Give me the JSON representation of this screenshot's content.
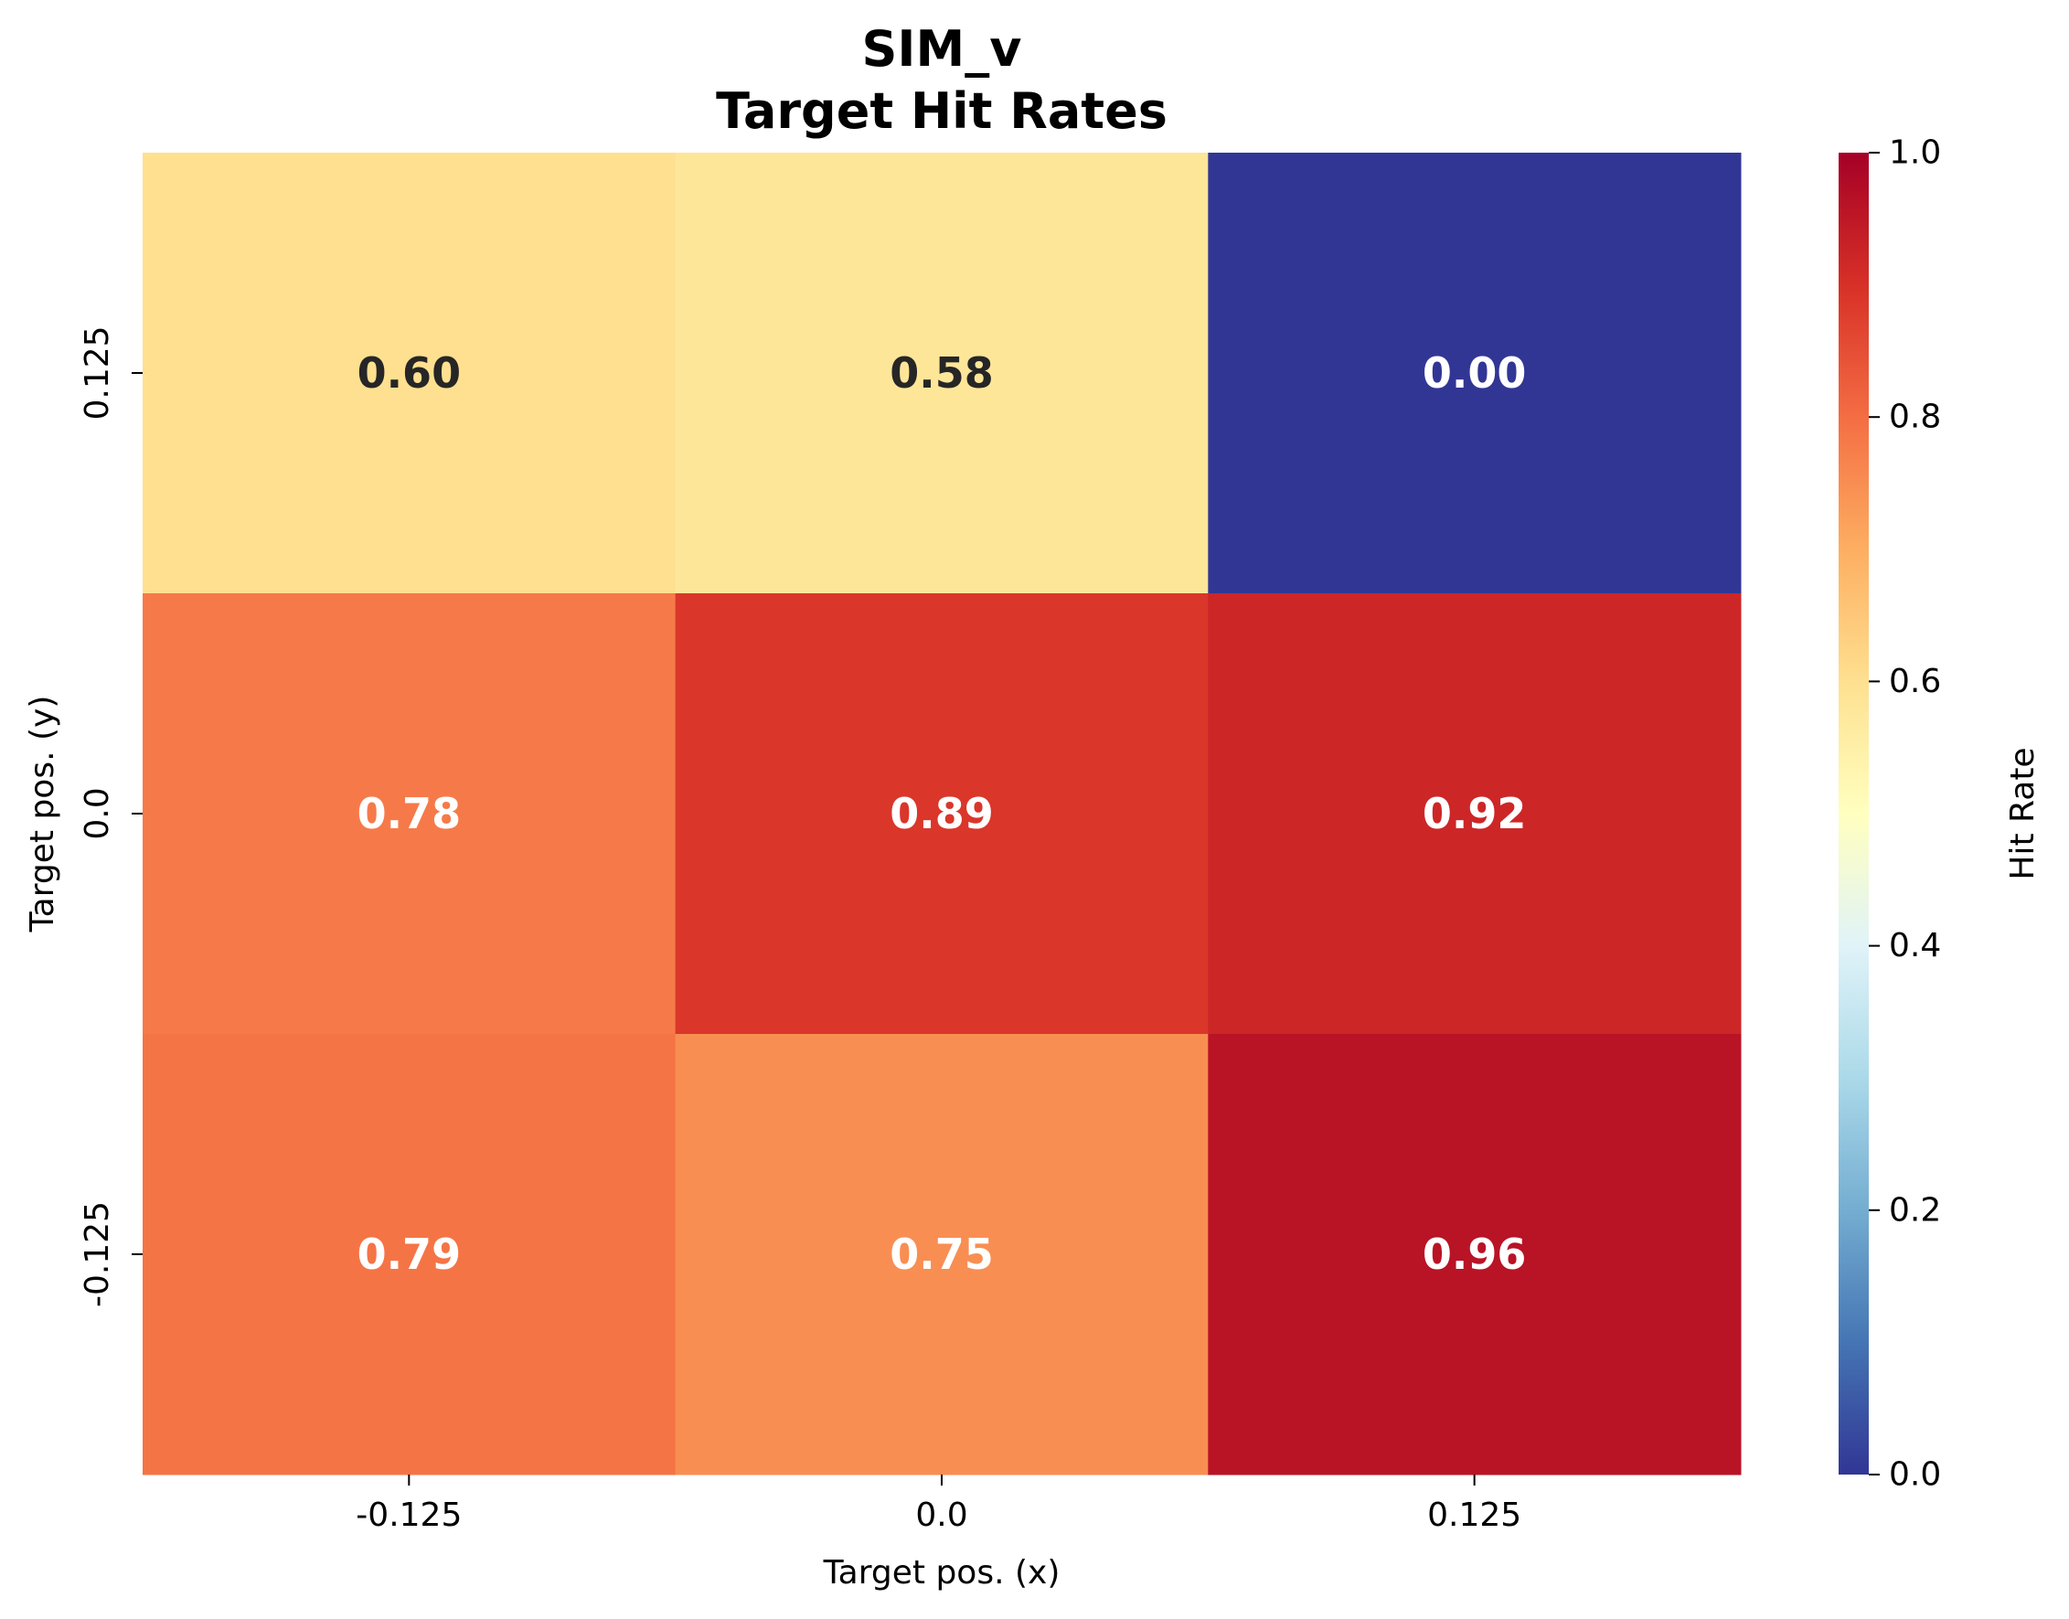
{
  "chart_data": {
    "type": "heatmap",
    "title": "SIM_v",
    "subtitle": "Target Hit Rates",
    "xlabel": "Target pos. (x)",
    "ylabel": "Target pos. (y)",
    "x_categories": [
      "-0.125",
      "0.0",
      "0.125"
    ],
    "y_categories": [
      "0.125",
      "0.0",
      "-0.125"
    ],
    "values": [
      [
        0.6,
        0.58,
        0.0
      ],
      [
        0.78,
        0.89,
        0.92
      ],
      [
        0.79,
        0.75,
        0.96
      ]
    ],
    "value_labels": [
      [
        "0.60",
        "0.58",
        "0.00"
      ],
      [
        "0.78",
        "0.89",
        "0.92"
      ],
      [
        "0.79",
        "0.75",
        "0.96"
      ]
    ],
    "colormap": "RdYlBu_r",
    "colorbar": {
      "label": "Hit Rate",
      "range": [
        0.0,
        1.0
      ],
      "ticks": [
        "0.0",
        "0.2",
        "0.4",
        "0.6",
        "0.8",
        "1.0"
      ]
    },
    "grid": false,
    "colors": {
      "low": "#313695",
      "mid": "#ffffbf",
      "high": "#a50026",
      "dark_text": "#262626",
      "light_text": "#ffffff"
    }
  }
}
